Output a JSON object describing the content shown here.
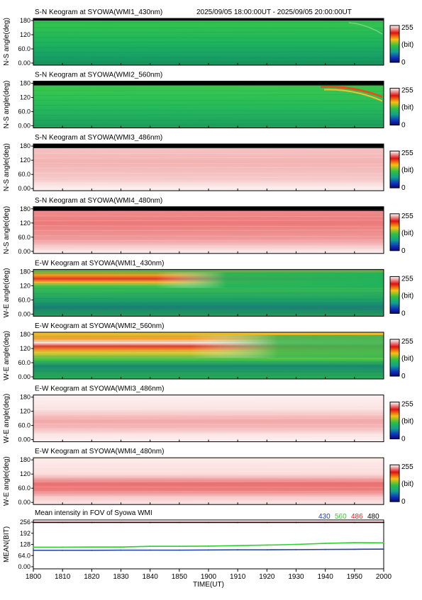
{
  "header": {
    "time_range": "2025/09/05 18:00:00UT - 2025/09/05 20:00:00UT"
  },
  "colors": {
    "background": "#ffffff",
    "s430": "#1f3fa8",
    "s560": "#2fd02f",
    "s486": "#e02020",
    "s480": "#000000"
  },
  "colorbar": {
    "max_label": "255",
    "unit_label": "(bit)",
    "min_label": "0",
    "colormap": "rainbow (blue-green-yellow-red-white)"
  },
  "keograms": [
    {
      "title": "S-N Keogram at SYOWA(WMI1_430nm)",
      "ylabel": "N-S angle(deg)",
      "yticks": [
        "180",
        "120",
        "60.0",
        "0.00"
      ],
      "palette": "green",
      "features": [
        "faint arc near top after 1950"
      ]
    },
    {
      "title": "S-N Keogram at SYOWA(WMI2_560nm)",
      "ylabel": "N-S angle(deg)",
      "yticks": [
        "180",
        "120",
        "60.0",
        "0.00"
      ],
      "palette": "green",
      "features": [
        "bright red/orange arc descending from ~180 deg at 1940 to ~150 deg at 2000"
      ]
    },
    {
      "title": "S-N Keogram at SYOWA(WMI3_486nm)",
      "ylabel": "N-S angle(deg)",
      "yticks": [
        "180",
        "120",
        "60.0",
        "0.00"
      ],
      "palette": "pink",
      "features": [
        "uniform light red band 40-170 deg"
      ]
    },
    {
      "title": "S-N Keogram at SYOWA(WMI4_480nm)",
      "ylabel": "N-S angle(deg)",
      "yticks": [
        "180",
        "120",
        "60.0",
        "0.00"
      ],
      "palette": "red",
      "features": [
        "red band 60-170 deg, paler after 1920"
      ]
    },
    {
      "title": "E-W Keogram at SYOWA(WMI1_430nm)",
      "ylabel": "W-E angle(deg)",
      "yticks": [
        "180",
        "120",
        "60.0",
        "0.00"
      ],
      "palette": "green",
      "features": [
        "red/yellow band near 150 deg fading out by ~1850"
      ]
    },
    {
      "title": "E-W Keogram at SYOWA(WMI2_560nm)",
      "ylabel": "W-E angle(deg)",
      "yticks": [
        "180",
        "120",
        "60.0",
        "0.00"
      ],
      "palette": "green",
      "features": [
        "saturated white/red band near 150 deg, orange/yellow glow extending to ~1900"
      ]
    },
    {
      "title": "E-W Keogram at SYOWA(WMI3_486nm)",
      "ylabel": "W-E angle(deg)",
      "yticks": [
        "180",
        "120",
        "60.0",
        "0.00"
      ],
      "palette": "pink",
      "features": [
        "light red band centered near 70 deg"
      ]
    },
    {
      "title": "E-W Keogram at SYOWA(WMI4_480nm)",
      "ylabel": "W-E angle(deg)",
      "yticks": [
        "180",
        "120",
        "60.0",
        "0.00"
      ],
      "palette": "red",
      "features": [
        "red band centered near 65 deg"
      ]
    }
  ],
  "mean_panel": {
    "title": "Mean intensity in FOV of Syowa WMI",
    "legend": [
      "430",
      "560",
      "486",
      "480"
    ],
    "ylabel": "MEAN(BIT)",
    "yticks": [
      "256",
      "192",
      "128",
      "64.0",
      "0.00"
    ],
    "xlabel": "TIME(UT)"
  },
  "xaxis": {
    "ticks": [
      "1800",
      "1810",
      "1820",
      "1830",
      "1840",
      "1850",
      "1900",
      "1910",
      "1920",
      "1930",
      "1940",
      "1950",
      "2000"
    ]
  },
  "chart_data": {
    "type": "line",
    "title": "Mean intensity in FOV of Syowa WMI",
    "xlabel": "TIME(UT)",
    "ylabel": "MEAN(BIT)",
    "ylim": [
      0,
      256
    ],
    "x": [
      "1800",
      "1810",
      "1820",
      "1830",
      "1840",
      "1850",
      "1900",
      "1910",
      "1920",
      "1930",
      "1940",
      "1950",
      "2000"
    ],
    "series": [
      {
        "name": "430",
        "color": "#1f3fa8",
        "values": [
          94,
          94,
          94,
          95,
          95,
          95,
          96,
          97,
          97,
          98,
          99,
          100,
          101
        ]
      },
      {
        "name": "560",
        "color": "#2fd02f",
        "values": [
          112,
          112,
          113,
          113,
          117,
          117,
          118,
          121,
          124,
          128,
          134,
          138,
          137
        ]
      },
      {
        "name": "486",
        "color": "#e02020",
        "values": [
          255,
          255,
          255,
          255,
          255,
          255,
          255,
          255,
          255,
          255,
          255,
          255,
          255
        ]
      },
      {
        "name": "480",
        "color": "#000000",
        "values": [
          254,
          254,
          254,
          254,
          254,
          254,
          254,
          254,
          254,
          254,
          254,
          254,
          254
        ]
      }
    ]
  }
}
